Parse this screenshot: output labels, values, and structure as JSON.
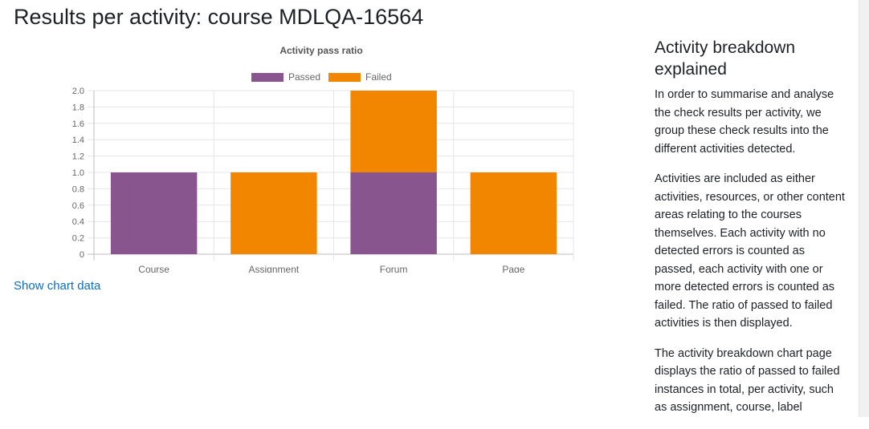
{
  "page": {
    "title": "Results per activity: course MDLQA-16564",
    "show_chart_link": "Show chart data"
  },
  "sidebar": {
    "title": "Activity breakdown explained",
    "paragraphs": [
      "In order to summarise and analyse the check results per activity, we group these check results into the different activities detected.",
      "Activities are included as either activities, resources, or other content areas relating to the courses themselves. Each activity with no detected errors is counted as passed, each activity with one or more detected errors is counted as failed. The ratio of passed to failed activities is then displayed.",
      "The activity breakdown chart page displays the ratio of passed to failed instances in total, per activity, such as assignment, course, label"
    ]
  },
  "colors": {
    "passed": "#88558f",
    "failed": "#f28600",
    "link": "#0f6cbf"
  },
  "chart_data": {
    "type": "bar",
    "stacked": true,
    "title": "Activity pass ratio",
    "categories": [
      "Course",
      "Assignment",
      "Forum",
      "Page"
    ],
    "series": [
      {
        "name": "Passed",
        "values": [
          1,
          0,
          1,
          0
        ]
      },
      {
        "name": "Failed",
        "values": [
          0,
          1,
          1,
          1
        ]
      }
    ],
    "ylim": [
      0,
      2
    ],
    "yticks": [
      "0",
      "0.2",
      "0.4",
      "0.6",
      "0.8",
      "1.0",
      "1.2",
      "1.4",
      "1.6",
      "1.8",
      "2.0"
    ],
    "grid": true,
    "legend": "top"
  }
}
